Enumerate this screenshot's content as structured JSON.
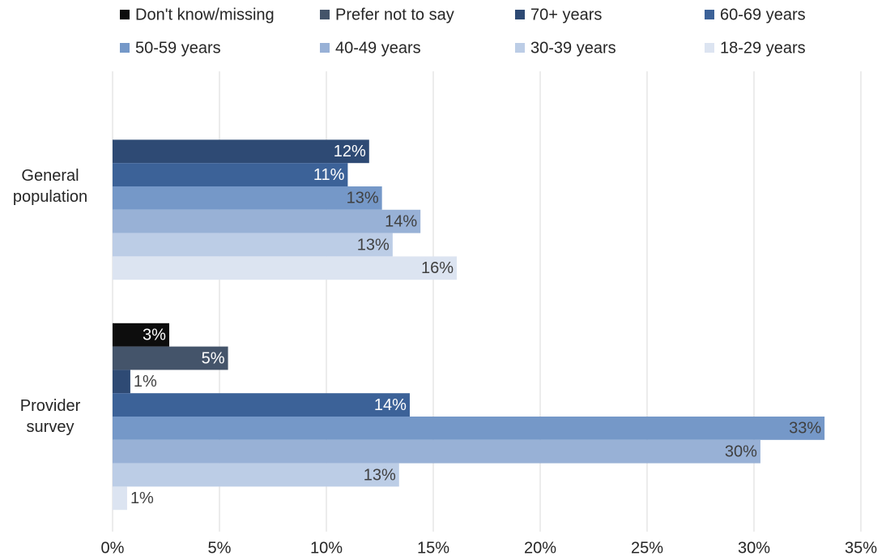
{
  "chart_data": {
    "type": "hbar",
    "categories": [
      "General population",
      "Provider survey"
    ],
    "series": [
      {
        "name": "Don't know/missing",
        "color": "#0d0d0d",
        "values": [
          null,
          2.65
        ],
        "value_labels": [
          null,
          "3%"
        ]
      },
      {
        "name": "Prefer not to say",
        "color": "#44546a",
        "values": [
          null,
          5.4
        ],
        "value_labels": [
          null,
          "5%"
        ]
      },
      {
        "name": "70+ years",
        "color": "#2e4a74",
        "values": [
          12.0,
          0.83
        ],
        "value_labels": [
          "12%",
          "1%"
        ]
      },
      {
        "name": "60-69 years",
        "color": "#3c6298",
        "values": [
          11.0,
          13.9
        ],
        "value_labels": [
          "11%",
          "14%"
        ]
      },
      {
        "name": "50-59 years",
        "color": "#7598c8",
        "values": [
          12.6,
          33.3
        ],
        "value_labels": [
          "13%",
          "33%"
        ]
      },
      {
        "name": "40-49 years",
        "color": "#98b1d6",
        "values": [
          14.4,
          30.3
        ],
        "value_labels": [
          "14%",
          "30%"
        ]
      },
      {
        "name": "30-39 years",
        "color": "#bccde6",
        "values": [
          13.1,
          13.4
        ],
        "value_labels": [
          "13%",
          "13%"
        ]
      },
      {
        "name": "18-29 years",
        "color": "#dce4f1",
        "values": [
          16.1,
          0.68
        ],
        "value_labels": [
          "16%",
          "1%"
        ]
      }
    ],
    "xlim": [
      0,
      35
    ],
    "xticks": [
      {
        "value": 0,
        "label": "0%"
      },
      {
        "value": 5,
        "label": "5%"
      },
      {
        "value": 10,
        "label": "10%"
      },
      {
        "value": 15,
        "label": "15%"
      },
      {
        "value": 20,
        "label": "20%"
      },
      {
        "value": 25,
        "label": "25%"
      },
      {
        "value": 30,
        "label": "30%"
      },
      {
        "value": 35,
        "label": "35%"
      }
    ],
    "grid": true,
    "legend": "top"
  }
}
